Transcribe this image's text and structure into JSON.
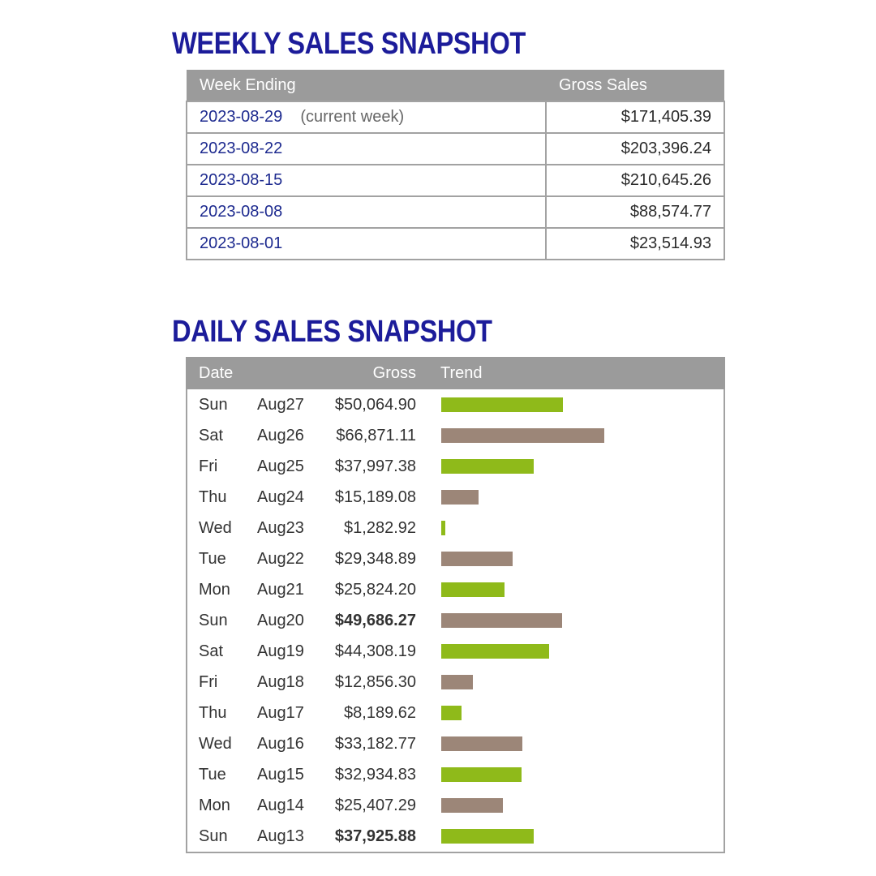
{
  "weekly": {
    "title": "WEEKLY SALES SNAPSHOT",
    "headers": {
      "week": "Week Ending",
      "gross": "Gross Sales"
    },
    "rows": [
      {
        "date": "2023-08-29",
        "note": "(current week)",
        "amount": "$171,405.39"
      },
      {
        "date": "2023-08-22",
        "note": "",
        "amount": "$203,396.24"
      },
      {
        "date": "2023-08-15",
        "note": "",
        "amount": "$210,645.26"
      },
      {
        "date": "2023-08-08",
        "note": "",
        "amount": "$88,574.77"
      },
      {
        "date": "2023-08-01",
        "note": "",
        "amount": "$23,514.93"
      }
    ]
  },
  "daily": {
    "title": "DAILY SALES SNAPSHOT",
    "headers": {
      "date": "Date",
      "gross": "Gross",
      "trend": "Trend"
    }
  },
  "colors": {
    "even": "#8fba1a",
    "odd": "#9c8678"
  },
  "chart_data": {
    "type": "bar",
    "title": "DAILY SALES SNAPSHOT",
    "categories": [
      "Aug27",
      "Aug26",
      "Aug25",
      "Aug24",
      "Aug23",
      "Aug22",
      "Aug21",
      "Aug20",
      "Aug19",
      "Aug18",
      "Aug17",
      "Aug16",
      "Aug15",
      "Aug14",
      "Aug13"
    ],
    "days": [
      "Sun",
      "Sat",
      "Fri",
      "Thu",
      "Wed",
      "Tue",
      "Mon",
      "Sun",
      "Sat",
      "Fri",
      "Thu",
      "Wed",
      "Tue",
      "Mon",
      "Sun"
    ],
    "labels": [
      "$50,064.90",
      "$66,871.11",
      "$37,997.38",
      "$15,189.08",
      "$1,282.92",
      "$29,348.89",
      "$25,824.20",
      "$49,686.27",
      "$44,308.19",
      "$12,856.30",
      "$8,189.62",
      "$33,182.77",
      "$32,934.83",
      "$25,407.29",
      "$37,925.88"
    ],
    "bold": [
      false,
      false,
      false,
      false,
      false,
      false,
      false,
      true,
      false,
      false,
      false,
      false,
      false,
      false,
      true
    ],
    "values": [
      50064.9,
      66871.11,
      37997.38,
      15189.08,
      1282.92,
      29348.89,
      25824.2,
      49686.27,
      44308.19,
      12856.3,
      8189.62,
      33182.77,
      32934.83,
      25407.29,
      37925.88
    ]
  }
}
